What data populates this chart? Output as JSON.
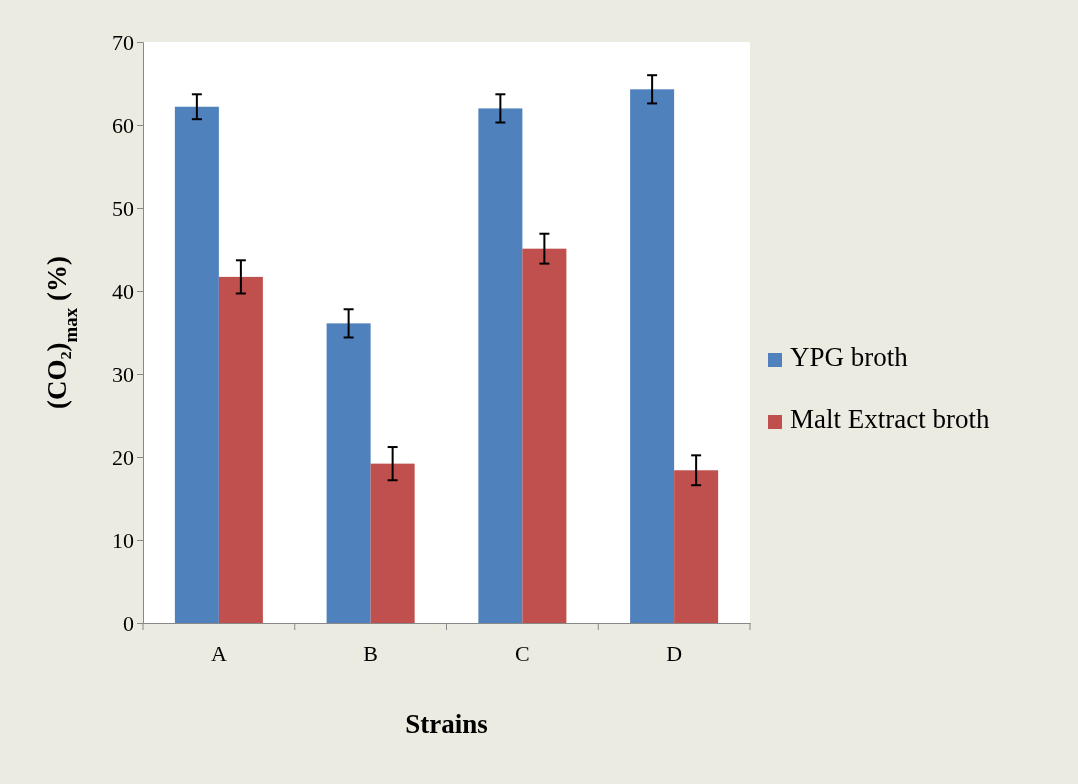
{
  "chart_data": {
    "type": "bar",
    "xlabel": "Strains",
    "ylabel": "(CO₂)$_{max}$ (%)",
    "categories": [
      "A",
      "B",
      "C",
      "D"
    ],
    "series": [
      {
        "name": "YPG broth",
        "color": "#4f81bd",
        "values": [
          62.2,
          36.1,
          62,
          64.3
        ],
        "errors": [
          1.5,
          1.7,
          1.7,
          1.7
        ]
      },
      {
        "name": "Malt Extract broth",
        "color": "#c0504d",
        "values": [
          41.7,
          19.2,
          45.1,
          18.4
        ],
        "errors": [
          2,
          2,
          1.8,
          1.8
        ]
      }
    ],
    "ylim": [
      0,
      70
    ],
    "yticks": [
      0,
      10,
      20,
      30,
      40,
      50,
      60,
      70
    ],
    "legend": "right"
  }
}
